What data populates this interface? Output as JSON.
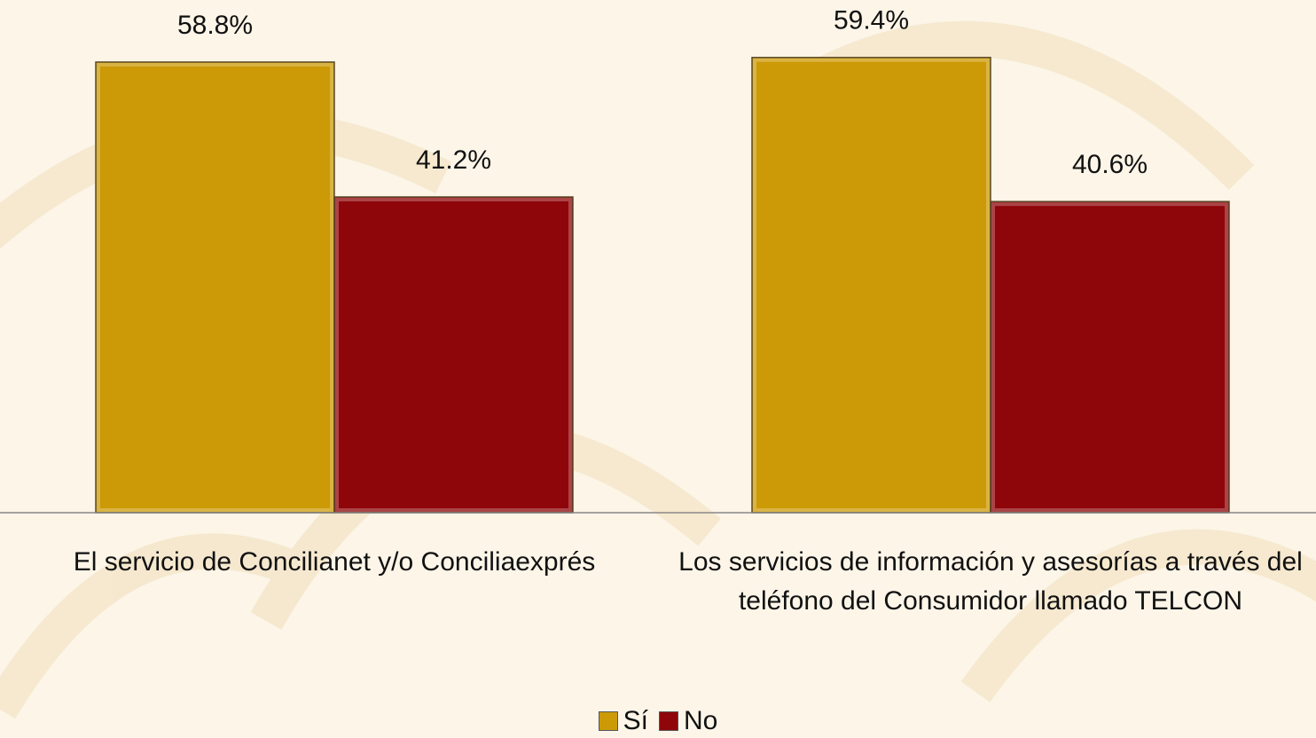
{
  "chart_data": {
    "type": "bar",
    "categories": [
      "El servicio de Concilianet y/o Conciliaexprés",
      "Los servicios de información y asesorías a través del teléfono del Consumidor llamado TELCON"
    ],
    "series": [
      {
        "name": "Sí",
        "color": "#cc9a06",
        "values": [
          58.8,
          59.4
        ],
        "value_labels": [
          "58.8%",
          "59.4%"
        ]
      },
      {
        "name": "No",
        "color": "#8e060a",
        "values": [
          41.2,
          40.6
        ],
        "value_labels": [
          "41.2%",
          "40.6%"
        ]
      }
    ],
    "ylim": [
      0,
      70
    ],
    "legend": "bottom"
  }
}
